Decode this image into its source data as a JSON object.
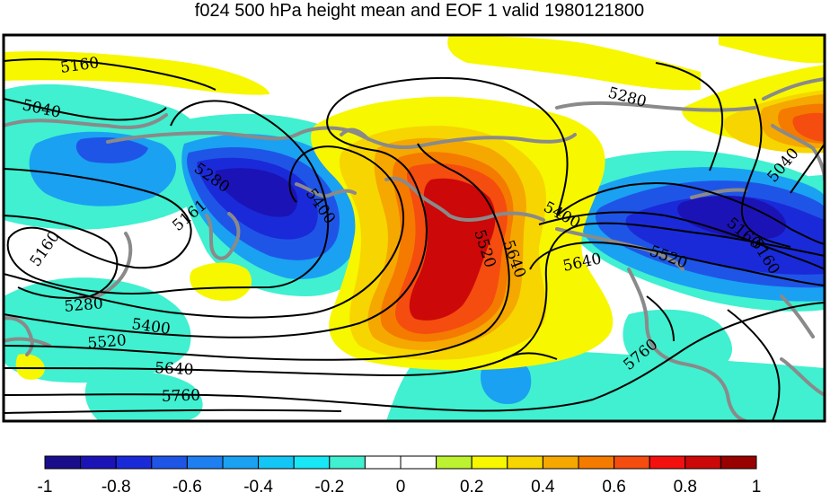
{
  "title": "f024 500 hPa height mean and EOF 1 valid 1980121800",
  "contour_labels": [
    "5160",
    "5040",
    "5280",
    "5161",
    "5400",
    "5520",
    "5640",
    "5760",
    "5400",
    "5520",
    "5640",
    "5160",
    "5400",
    "5280",
    "5160",
    "5280",
    "5040",
    "5520",
    "5160",
    "5640",
    "5760"
  ],
  "colorbar": {
    "colors": [
      "#1a0d8c",
      "#1c13b6",
      "#1a2ad9",
      "#1f55e6",
      "#1d7ff0",
      "#1aa1f2",
      "#14c6f5",
      "#18e8f5",
      "#40f0d0",
      "#ffffff",
      "#ffffff",
      "#bdf230",
      "#f7f700",
      "#f7d500",
      "#f5a800",
      "#f57a00",
      "#f54c10",
      "#f51010",
      "#cc0808",
      "#990000"
    ],
    "tick_labels": [
      "-1",
      "-0.8",
      "-0.6",
      "-0.4",
      "-0.2",
      "0",
      "0.2",
      "0.4",
      "0.6",
      "0.8",
      "1"
    ]
  }
}
